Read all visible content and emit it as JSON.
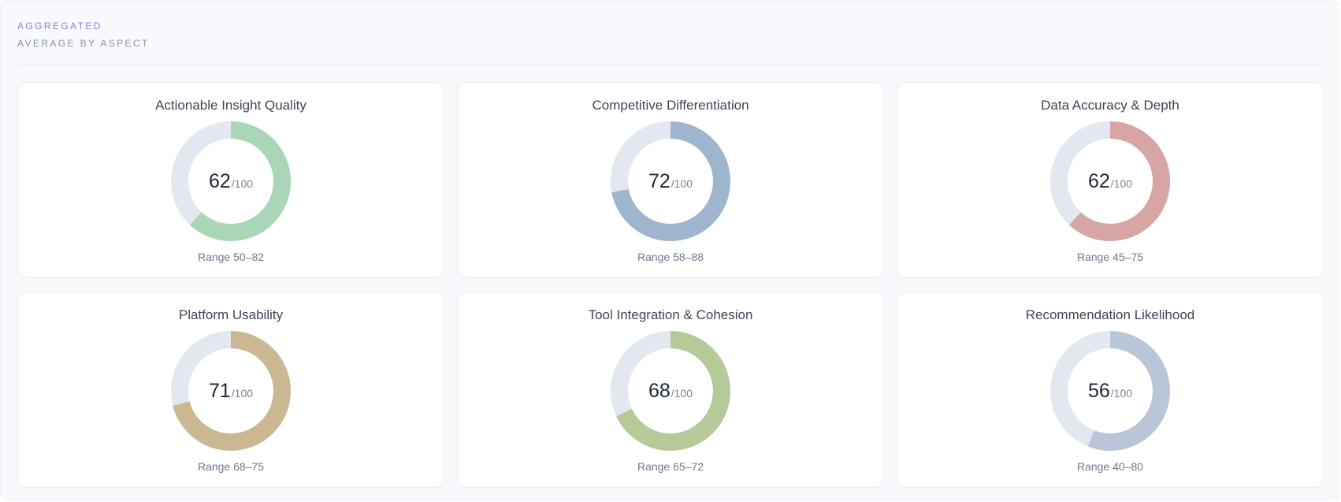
{
  "header": {
    "eyebrow": "AGGREGATED",
    "subtitle": "AVERAGE BY ASPECT"
  },
  "track_color": "#e2e7f0",
  "aspects": [
    {
      "title": "Actionable Insight Quality",
      "score": "62",
      "score_value": 62,
      "out_of": "/100",
      "range": "Range 50–82",
      "color": "#a9d6b7"
    },
    {
      "title": "Competitive Differentiation",
      "score": "72",
      "score_value": 72,
      "out_of": "/100",
      "range": "Range 58–88",
      "color": "#9fb4cd"
    },
    {
      "title": "Data Accuracy & Depth",
      "score": "62",
      "score_value": 62,
      "out_of": "/100",
      "range": "Range 45–75",
      "color": "#d6a5a4"
    },
    {
      "title": "Platform Usability",
      "score": "71",
      "score_value": 71,
      "out_of": "/100",
      "range": "Range 68–75",
      "color": "#cbb893"
    },
    {
      "title": "Tool Integration & Cohesion",
      "score": "68",
      "score_value": 68,
      "out_of": "/100",
      "range": "Range 65–72",
      "color": "#b5ca99"
    },
    {
      "title": "Recommendation Likelihood",
      "score": "56",
      "score_value": 56,
      "out_of": "/100",
      "range": "Range 40–80",
      "color": "#b9c6d7"
    }
  ]
}
